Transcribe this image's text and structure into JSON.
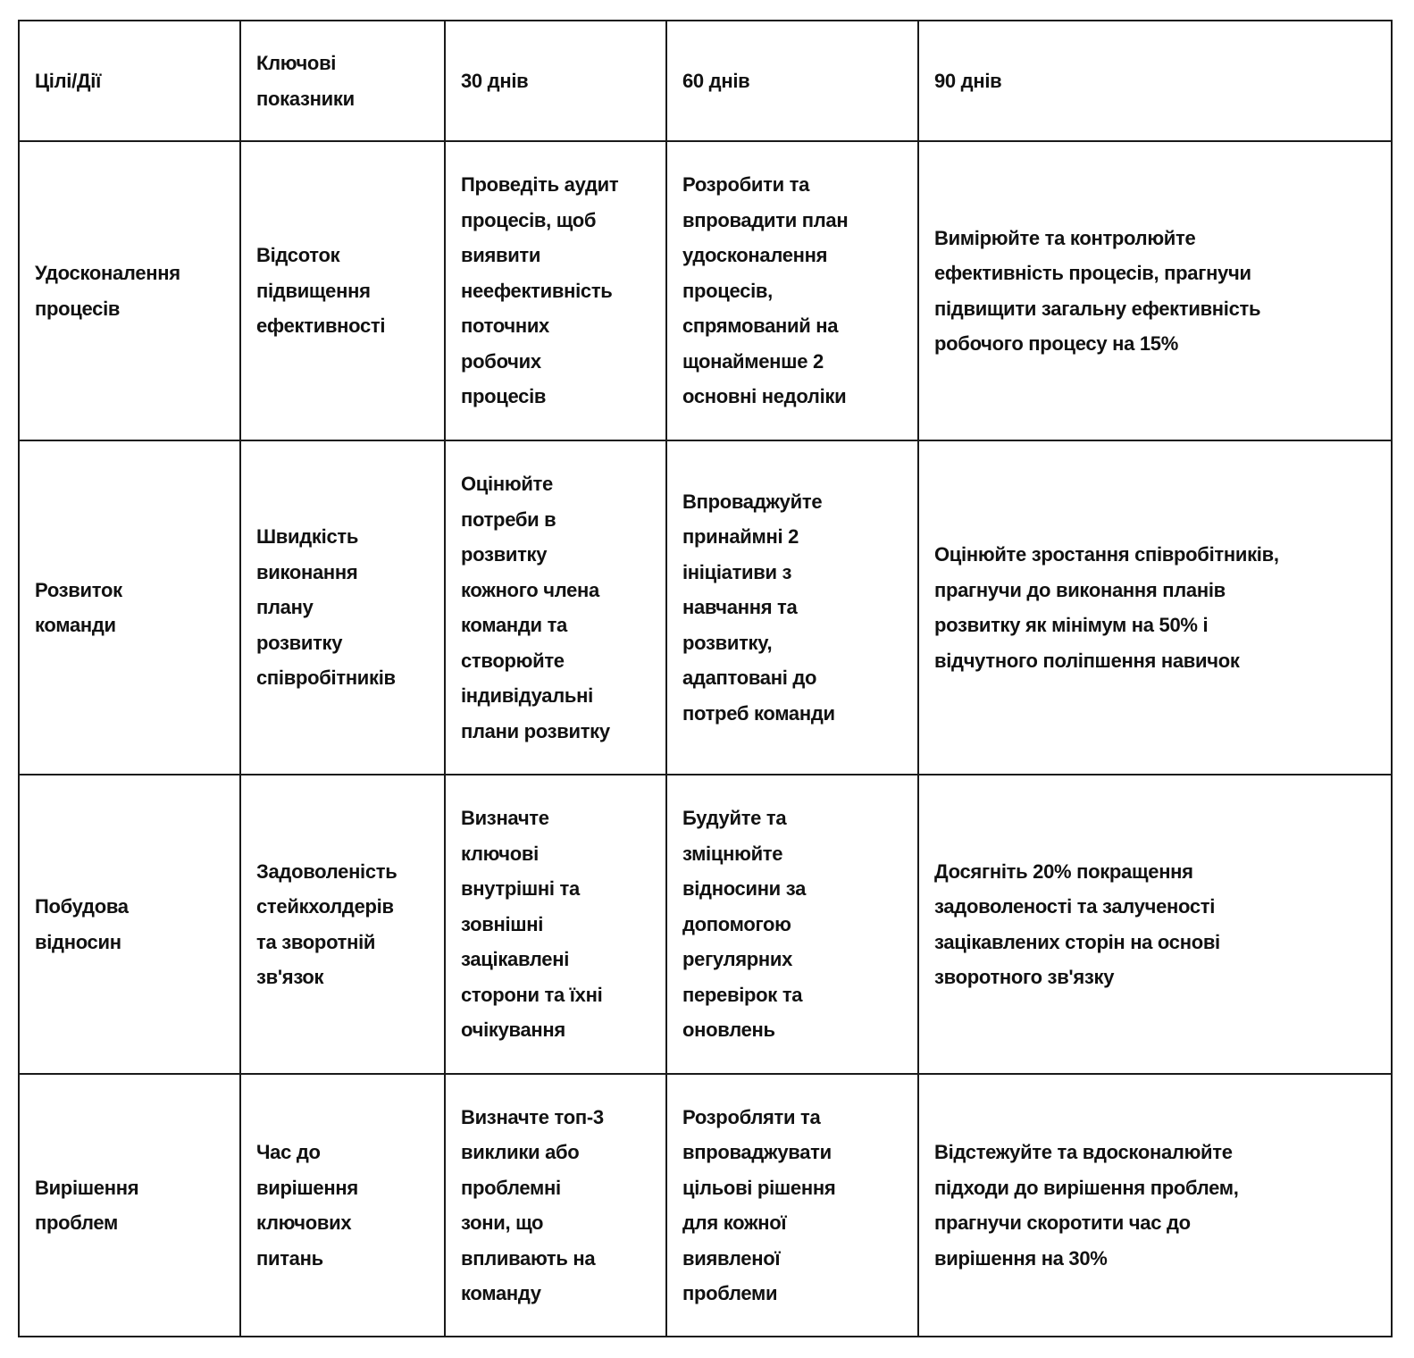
{
  "table": {
    "headers": [
      "Цілі/Дії",
      "Ключові\nпоказники",
      "30 днів",
      "60 днів",
      "90 днів"
    ],
    "rows": [
      [
        "Удосконалення\nпроцесів",
        "Відсоток\nпідвищення\nефективності",
        "Проведіть аудит\nпроцесів, щоб\nвиявити\nнеефективність\nпоточних\nробочих\nпроцесів",
        "Розробити та\nвпровадити план\nудосконалення\nпроцесів,\nспрямований на\nщонайменше 2\nосновні недоліки",
        "Вимірюйте та контролюйте\nефективність процесів, прагнучи\nпідвищити загальну ефективність\nробочого процесу на 15%"
      ],
      [
        "Розвиток\nкоманди",
        "Швидкість\nвиконання\nплану\nрозвитку\nспівробітників",
        "Оцінюйте\nпотреби в\nрозвитку\nкожного члена\nкоманди та\nстворюйте\nіндивідуальні\nплани розвитку",
        "Впроваджуйте\nпринаймні 2\nініціативи з\nнавчання та\nрозвитку,\nадаптовані до\nпотреб команди",
        "Оцінюйте зростання співробітників,\nпрагнучи до виконання планів\nрозвитку як мінімум на 50% і\nвідчутного поліпшення навичок"
      ],
      [
        "Побудова\nвідносин",
        "Задоволеність\nстейкхолдерів\nта зворотній\nзв'язок",
        "Визначте\nключові\nвнутрішні та\nзовнішні\nзацікавлені\nсторони та їхні\nочікування",
        "Будуйте та\nзміцнюйте\nвідносини за\nдопомогою\nрегулярних\nперевірок та\nоновлень",
        "Досягніть 20% покращення\nзадоволеності та залученості\nзацікавлених сторін на основі\nзворотного зв'язку"
      ],
      [
        "Вирішення\nпроблем",
        "Час до\nвирішення\nключових\nпитань",
        "Визначте топ-3\nвиклики або\nпроблемні\nзони, що\nвпливають на\nкоманду",
        "Розробляти та\nвпроваджувати\nцільові рішення\nдля кожної\nвиявленої\nпроблеми",
        "Відстежуйте та вдосконалюйте\nпідходи до вирішення проблем,\nпрагнучи скоротити час до\nвирішення на 30%"
      ]
    ]
  }
}
